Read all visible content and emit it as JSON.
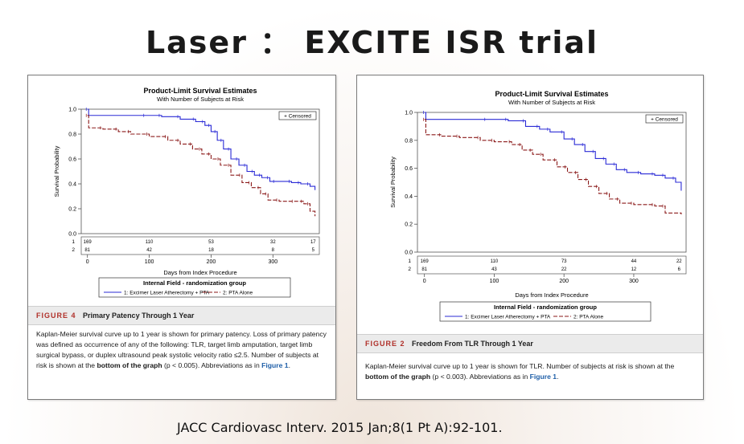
{
  "slide": {
    "title": "Laser ： EXCITE ISR trial",
    "citation": "JACC Cardiovasc Interv. 2015 Jan;8(1 Pt A):92-101."
  },
  "figures": [
    {
      "caption": {
        "label": "FIGURE 4",
        "title": "Primary Patency Through 1 Year",
        "body_1": "Kaplan-Meier survival curve up to 1 year is shown for primary patency. Loss of primary patency was defined as occurrence of any of the following: TLR, target limb amputation, target limb surgical bypass, or duplex ultrasound peak systolic velocity ratio ≤2.5. Number of subjects at risk is shown at the ",
        "body_bold": "bottom of the graph",
        "body_2": " (p < 0.005). Abbreviations as in ",
        "link": "Figure 1",
        "body_3": "."
      }
    },
    {
      "caption": {
        "label": "FIGURE 2",
        "title": "Freedom From TLR Through 1 Year",
        "body_1": "Kaplan-Meier survival curve up to 1 year is shown for TLR. Number of subjects at risk is shown at the ",
        "body_bold": "bottom of the graph",
        "body_2": " (p < 0.003). Abbreviations as in ",
        "link": "Figure 1",
        "body_3": "."
      }
    }
  ],
  "chart_data": [
    {
      "type": "line",
      "title": "Product-Limit Survival Estimates",
      "subtitle": "With Number of Subjects at Risk",
      "xlabel": "Days from Index Procedure",
      "ylabel": "Survival Probability",
      "xlim": [
        -10,
        375
      ],
      "ylim": [
        0,
        1.0
      ],
      "xticks": [
        0,
        100,
        200,
        300
      ],
      "yticks": [
        0.0,
        0.2,
        0.4,
        0.6,
        0.8,
        1.0
      ],
      "censored_label": "+ Censored",
      "legend_title": "Internal Field - randomization group",
      "series": [
        {
          "name": "1: Excimer Laser Atherectomy + PTA",
          "color": "#2b2bd6",
          "x": [
            0,
            2,
            95,
            120,
            150,
            175,
            190,
            200,
            210,
            220,
            232,
            245,
            258,
            270,
            282,
            295,
            305,
            330,
            345,
            360,
            368
          ],
          "y": [
            1.0,
            0.95,
            0.95,
            0.94,
            0.92,
            0.9,
            0.87,
            0.82,
            0.75,
            0.68,
            0.6,
            0.55,
            0.5,
            0.47,
            0.45,
            0.42,
            0.42,
            0.41,
            0.4,
            0.38,
            0.35
          ]
        },
        {
          "name": "2: PTA  Alone",
          "color": "#8b1a1a",
          "x": [
            0,
            2,
            25,
            50,
            70,
            100,
            130,
            150,
            170,
            185,
            200,
            215,
            232,
            250,
            265,
            280,
            292,
            310,
            335,
            350,
            360,
            368
          ],
          "y": [
            0.95,
            0.85,
            0.84,
            0.82,
            0.8,
            0.78,
            0.75,
            0.72,
            0.68,
            0.64,
            0.6,
            0.55,
            0.47,
            0.41,
            0.37,
            0.32,
            0.27,
            0.26,
            0.26,
            0.24,
            0.18,
            0.14
          ]
        }
      ],
      "at_risk": {
        "x": [
          0,
          100,
          200,
          300,
          365
        ],
        "rows": [
          {
            "label": "1",
            "values": [
              "169",
              "110",
              "53",
              "32",
              "17"
            ]
          },
          {
            "label": "2",
            "values": [
              "81",
              "42",
              "18",
              "8",
              "5"
            ]
          }
        ]
      }
    },
    {
      "type": "line",
      "title": "Product-Limit Survival Estimates",
      "subtitle": "With Number of Subjects at Risk",
      "xlabel": "Days from Index Procedure",
      "ylabel": "Survival Probability",
      "xlim": [
        -10,
        375
      ],
      "ylim": [
        0,
        1.0
      ],
      "xticks": [
        0,
        100,
        200,
        300
      ],
      "yticks": [
        0.0,
        0.2,
        0.4,
        0.6,
        0.8,
        1.0
      ],
      "censored_label": "+ Censored",
      "legend_title": "Internal Field - randomization group",
      "series": [
        {
          "name": "1: Excimer Laser Atherectomy + PTA",
          "color": "#2b2bd6",
          "x": [
            0,
            2,
            90,
            120,
            145,
            165,
            180,
            200,
            215,
            230,
            245,
            260,
            275,
            290,
            310,
            330,
            345,
            360,
            368
          ],
          "y": [
            1.0,
            0.95,
            0.95,
            0.94,
            0.9,
            0.88,
            0.86,
            0.81,
            0.77,
            0.72,
            0.67,
            0.63,
            0.59,
            0.57,
            0.56,
            0.55,
            0.53,
            0.5,
            0.44
          ]
        },
        {
          "name": "2: PTA  Alone",
          "color": "#8b1a1a",
          "x": [
            0,
            2,
            25,
            50,
            80,
            100,
            125,
            140,
            155,
            170,
            190,
            205,
            220,
            235,
            250,
            265,
            280,
            300,
            330,
            345,
            368
          ],
          "y": [
            0.95,
            0.84,
            0.83,
            0.82,
            0.8,
            0.79,
            0.77,
            0.73,
            0.7,
            0.66,
            0.61,
            0.57,
            0.52,
            0.47,
            0.42,
            0.38,
            0.35,
            0.34,
            0.33,
            0.28,
            0.27
          ]
        }
      ],
      "at_risk": {
        "x": [
          0,
          100,
          200,
          300,
          365
        ],
        "rows": [
          {
            "label": "1",
            "values": [
              "169",
              "110",
              "73",
              "44",
              "22"
            ]
          },
          {
            "label": "2",
            "values": [
              "81",
              "43",
              "22",
              "12",
              "6"
            ]
          }
        ]
      }
    }
  ]
}
